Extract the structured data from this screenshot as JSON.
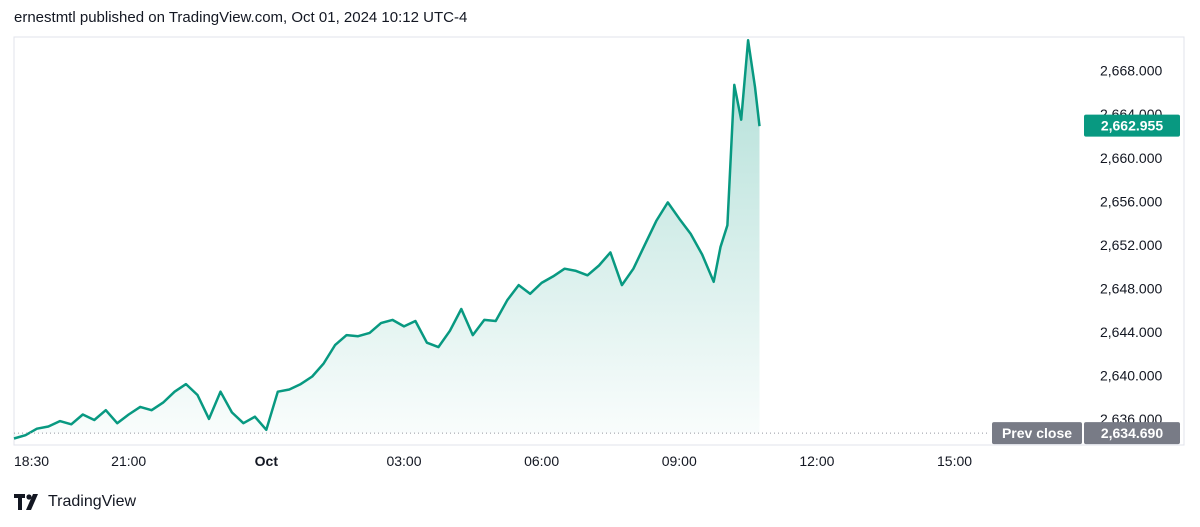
{
  "header": {
    "text": "ernestmtl published on TradingView.com, Oct 01, 2024 10:12 UTC-4"
  },
  "footer": {
    "brand": "TradingView"
  },
  "chart_data": {
    "type": "area",
    "x_unit": "hours since 18:30",
    "x_ticks": [
      {
        "label": "18:30",
        "x": 0,
        "bold": false
      },
      {
        "label": "21:00",
        "x": 2.5,
        "bold": false
      },
      {
        "label": "Oct",
        "x": 5.5,
        "bold": true
      },
      {
        "label": "03:00",
        "x": 8.5,
        "bold": false
      },
      {
        "label": "06:00",
        "x": 11.5,
        "bold": false
      },
      {
        "label": "09:00",
        "x": 14.5,
        "bold": false
      },
      {
        "label": "12:00",
        "x": 17.5,
        "bold": false
      },
      {
        "label": "15:00",
        "x": 20.5,
        "bold": false
      }
    ],
    "xlim": [
      0,
      23.3
    ],
    "y_ticks": [
      "2,636.000",
      "2,640.000",
      "2,644.000",
      "2,648.000",
      "2,652.000",
      "2,656.000",
      "2,660.000",
      "2,664.000",
      "2,668.000"
    ],
    "y_tick_values": [
      2636,
      2640,
      2644,
      2648,
      2652,
      2656,
      2660,
      2664,
      2668
    ],
    "ylim": [
      2633.6,
      2671.1
    ],
    "line_color": "#089981",
    "last_price": {
      "value": 2662.955,
      "label": "2,662.955",
      "color": "#089981"
    },
    "prev_close": {
      "value": 2634.69,
      "label": "2,634.690",
      "caption": "Prev close",
      "color": "#787b86"
    },
    "series": [
      {
        "x": [
          0,
          0.25,
          0.5,
          0.75,
          1.0,
          1.25,
          1.5,
          1.75,
          2.0,
          2.25,
          2.5,
          2.75,
          3.0,
          3.25,
          3.5,
          3.75,
          4.0,
          4.25,
          4.5,
          4.75,
          5.0,
          5.25,
          5.5,
          5.75,
          6.0,
          6.25,
          6.5,
          6.75,
          7.0,
          7.25,
          7.5,
          7.75,
          8.0,
          8.25,
          8.5,
          8.75,
          9.0,
          9.25,
          9.5,
          9.75,
          10.0,
          10.25,
          10.5,
          10.75,
          11.0,
          11.25,
          11.5,
          11.75,
          12.0,
          12.25,
          12.5,
          12.75,
          13.0,
          13.25,
          13.5,
          13.75,
          14.0,
          14.25,
          14.5,
          14.75,
          15.0,
          15.25,
          15.4,
          15.55,
          15.7,
          15.85,
          16.0,
          16.15,
          16.25
        ],
        "y": [
          2634.2,
          2634.5,
          2635.1,
          2635.3,
          2635.8,
          2635.5,
          2636.4,
          2635.9,
          2636.8,
          2635.6,
          2636.4,
          2637.1,
          2636.8,
          2637.5,
          2638.5,
          2639.2,
          2638.2,
          2636.0,
          2638.5,
          2636.6,
          2635.6,
          2636.2,
          2635.0,
          2638.5,
          2638.7,
          2639.2,
          2639.9,
          2641.1,
          2642.8,
          2643.7,
          2643.6,
          2643.9,
          2644.8,
          2645.1,
          2644.5,
          2645.0,
          2643.0,
          2642.6,
          2644.1,
          2646.1,
          2643.7,
          2645.1,
          2645.0,
          2646.9,
          2648.3,
          2647.5,
          2648.5,
          2649.1,
          2649.8,
          2649.6,
          2649.2,
          2650.1,
          2651.3,
          2648.3,
          2649.8,
          2652.0,
          2654.2,
          2655.9,
          2654.4,
          2653.0,
          2651.1,
          2648.6,
          2651.8,
          2653.8,
          2666.7,
          2663.5,
          2670.8,
          2666.5,
          2662.9
        ]
      }
    ]
  }
}
